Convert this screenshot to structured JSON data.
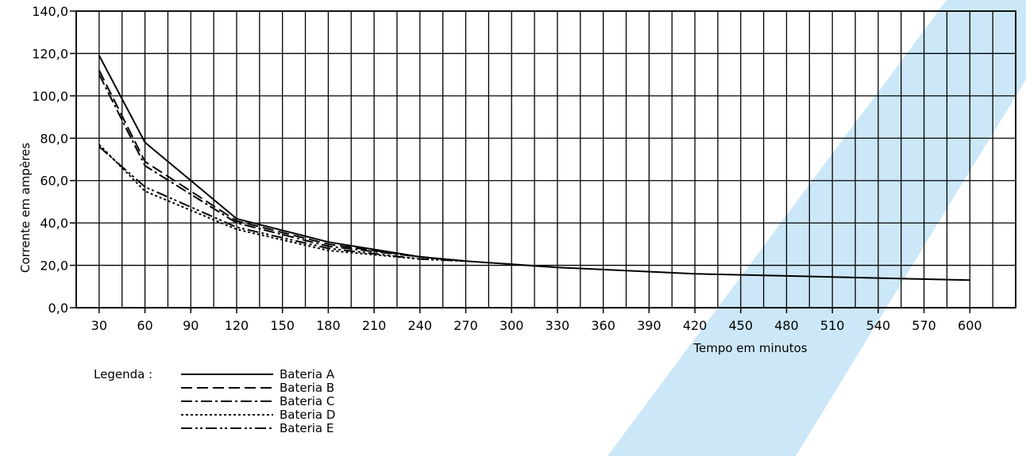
{
  "chart_data": {
    "type": "line",
    "xlabel": "Tempo em minutos",
    "ylabel": "Corrente em ampères",
    "x_ticks": [
      "30",
      "60",
      "90",
      "120",
      "150",
      "180",
      "210",
      "240",
      "270",
      "300",
      "330",
      "360",
      "390",
      "420",
      "450",
      "480",
      "510",
      "540",
      "570",
      "600"
    ],
    "y_ticks": [
      "0,0",
      "20,0",
      "40,0",
      "60,0",
      "80,0",
      "100,0",
      "120,0",
      "140,0"
    ],
    "xlim": [
      15,
      630
    ],
    "ylim": [
      0,
      140
    ],
    "grid": true,
    "legend_title": "Legenda :",
    "legend_position": "bottom-left",
    "series": [
      {
        "name": "Bateria A",
        "dash": "solid",
        "x": [
          30,
          60,
          120,
          180,
          240,
          270,
          330,
          420,
          480,
          540,
          600
        ],
        "y": [
          119,
          78,
          42,
          31,
          24,
          22,
          19,
          16,
          15,
          14,
          13
        ]
      },
      {
        "name": "Bateria B",
        "dash": "dashed",
        "x": [
          30,
          60,
          120,
          180,
          240,
          270
        ],
        "y": [
          112,
          69,
          41,
          30,
          24,
          22
        ]
      },
      {
        "name": "Bateria C",
        "dash": "dashdot",
        "x": [
          30,
          60,
          120,
          180,
          240,
          270
        ],
        "y": [
          110,
          67,
          40,
          29,
          24,
          22
        ]
      },
      {
        "name": "Bateria D",
        "dash": "dotted",
        "x": [
          30,
          60,
          120,
          180,
          240,
          270
        ],
        "y": [
          77,
          55,
          37,
          27,
          23,
          22
        ]
      },
      {
        "name": "Bateria E",
        "dash": "dashdotdot",
        "x": [
          30,
          60,
          120,
          180,
          240,
          270
        ],
        "y": [
          76,
          57,
          38,
          28,
          23,
          22
        ]
      }
    ]
  }
}
